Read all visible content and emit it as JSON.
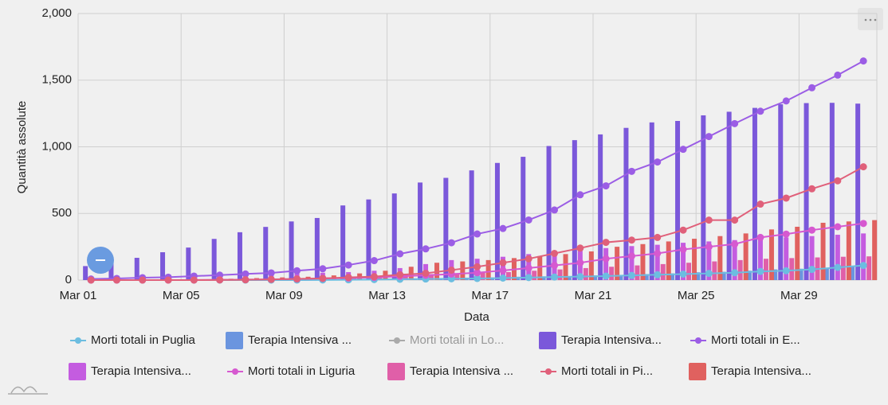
{
  "chart_data": {
    "type": "combo",
    "y_axis_label": "Quantità assolute",
    "x_axis_label": "Data",
    "categories": [
      "Mar 01",
      null,
      null,
      null,
      "Mar 05",
      null,
      null,
      null,
      "Mar 09",
      null,
      null,
      null,
      "Mar 13",
      null,
      null,
      null,
      "Mar 17",
      null,
      null,
      null,
      "Mar 21",
      null,
      null,
      null,
      "Mar 25",
      null,
      null,
      null,
      "Mar 29",
      null,
      null
    ],
    "ylim": [
      0,
      2000
    ],
    "yticks": [
      0,
      500,
      {
        "value": 1000,
        "label": "1,000"
      },
      {
        "value": 1500,
        "label": "1,500"
      },
      {
        "value": 2000,
        "label": "2,000"
      }
    ],
    "grid": true,
    "legend": "bottom",
    "series": [
      {
        "name": "Morti totali in Puglia",
        "type": "line",
        "color": "#6cbde0",
        "values": [
          0,
          0,
          0,
          0,
          0,
          0,
          0,
          0,
          0,
          1,
          2,
          4,
          6,
          8,
          10,
          12,
          15,
          19,
          23,
          26,
          30,
          35,
          40,
          45,
          50,
          55,
          65,
          70,
          80,
          95,
          110
        ]
      },
      {
        "name": "Terapia Intensiva ...",
        "type": "bar",
        "color": "#6b95df",
        "values": [
          0,
          0,
          0,
          0,
          0,
          0,
          0,
          1,
          2,
          3,
          5,
          7,
          9,
          12,
          15,
          18,
          20,
          25,
          28,
          30,
          35,
          38,
          45,
          50,
          58,
          62,
          70,
          80,
          85,
          90,
          100
        ]
      },
      {
        "name": "Morti totali in Lo...",
        "type": "line",
        "color": "#999999",
        "hidden": true
      },
      {
        "name": "Terapia Intensiva...",
        "type": "bar",
        "color": "#7b58da",
        "values": [
          105,
          127,
          167,
          209,
          244,
          309,
          359,
          399,
          440,
          466,
          560,
          605,
          650,
          732,
          767,
          823,
          879,
          925,
          1006,
          1050,
          1093,
          1142,
          1183,
          1194,
          1236,
          1263,
          1292,
          1319,
          1328,
          1330,
          1324
        ]
      },
      {
        "name": "Morti totali in E...",
        "type": "line",
        "color": "#9b5de5",
        "values": [
          8,
          12,
          18,
          22,
          30,
          37,
          46,
          54,
          70,
          85,
          113,
          146,
          197,
          234,
          280,
          346,
          387,
          451,
          526,
          640,
          707,
          816,
          886,
          981,
          1077,
          1174,
          1267,
          1344,
          1443,
          1538,
          1644
        ]
      },
      {
        "name": "Terapia Intensiva...",
        "type": "bar",
        "color": "#c45ce0",
        "values": [
          10,
          15,
          20,
          25,
          30,
          35,
          40,
          45,
          50,
          55,
          60,
          70,
          90,
          120,
          150,
          160,
          175,
          195,
          215,
          225,
          240,
          255,
          265,
          280,
          290,
          300,
          310,
          320,
          330,
          340,
          350
        ]
      },
      {
        "name": "Morti totali in Liguria",
        "type": "line",
        "color": "#d659d0",
        "values": [
          0,
          0,
          0,
          0,
          1,
          2,
          3,
          5,
          8,
          12,
          15,
          20,
          28,
          36,
          45,
          55,
          72,
          90,
          110,
          130,
          160,
          180,
          200,
          230,
          250,
          270,
          320,
          345,
          375,
          400,
          425
        ]
      },
      {
        "name": "Terapia Intensiva ...",
        "type": "bar",
        "color": "#e05fa8",
        "values": [
          2,
          3,
          4,
          5,
          6,
          8,
          10,
          12,
          15,
          20,
          25,
          30,
          40,
          45,
          50,
          55,
          60,
          70,
          80,
          90,
          100,
          110,
          120,
          130,
          140,
          150,
          160,
          165,
          170,
          175,
          178
        ]
      },
      {
        "name": "Morti totali in Pi...",
        "type": "line",
        "color": "#e0607a",
        "values": [
          0,
          0,
          0,
          0,
          0,
          1,
          2,
          5,
          9,
          13,
          20,
          26,
          40,
          51,
          75,
          100,
          130,
          160,
          200,
          240,
          283,
          300,
          320,
          375,
          450,
          450,
          570,
          615,
          685,
          745,
          850
        ]
      },
      {
        "name": "Terapia Intensiva...",
        "type": "bar",
        "color": "#e0615f",
        "values": [
          0,
          0,
          0,
          2,
          5,
          10,
          15,
          20,
          25,
          35,
          50,
          70,
          100,
          130,
          140,
          150,
          165,
          180,
          195,
          215,
          250,
          270,
          290,
          310,
          330,
          350,
          380,
          400,
          430,
          440,
          450
        ]
      }
    ]
  }
}
